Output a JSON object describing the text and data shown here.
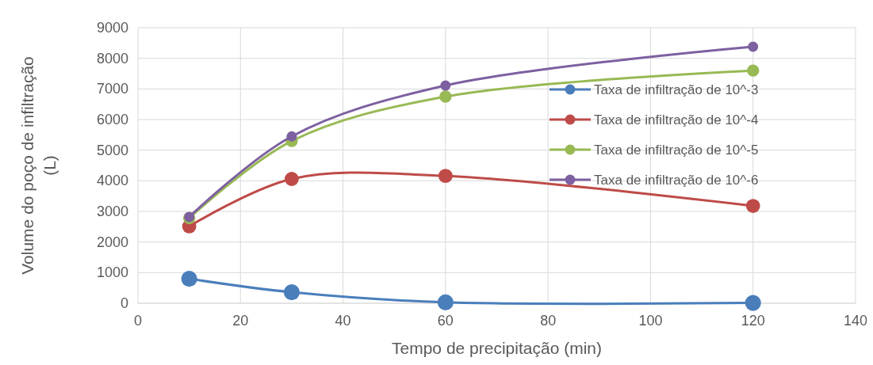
{
  "chart_data": {
    "type": "line",
    "xlabel": "Tempo de precipitação (min)",
    "ylabel": "Volume do poço de infiltração (L)",
    "x": [
      10,
      30,
      60,
      120
    ],
    "series": [
      {
        "name": "Taxa de infiltração de 10^-3",
        "color": "#4a7ebb",
        "values": [
          800,
          360,
          30,
          10
        ]
      },
      {
        "name": "Taxa de infiltração de 10^-4",
        "color": "#be4b48",
        "values": [
          2510,
          4060,
          4160,
          3180
        ]
      },
      {
        "name": "Taxa de infiltração de 10^-5",
        "color": "#98b954",
        "values": [
          2780,
          5300,
          6750,
          7600
        ]
      },
      {
        "name": "Taxa de infiltração de 10^-6",
        "color": "#7d60a0",
        "values": [
          2820,
          5450,
          7110,
          8380
        ]
      }
    ],
    "xlim": [
      0,
      140
    ],
    "xticks": [
      0,
      20,
      40,
      60,
      80,
      100,
      120,
      140
    ],
    "ylim": [
      0,
      9000
    ],
    "yticks": [
      0,
      1000,
      2000,
      3000,
      4000,
      5000,
      6000,
      7000,
      8000,
      9000
    ],
    "grid": true,
    "legend": "top right",
    "marker": "circle",
    "line_style": "solid"
  }
}
